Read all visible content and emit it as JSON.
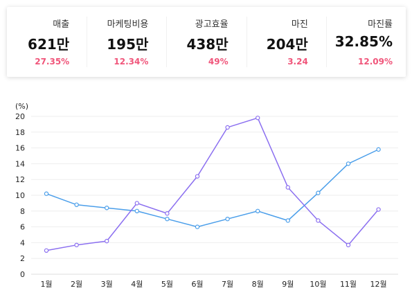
{
  "kpis": [
    {
      "label": "매출",
      "value": "621만",
      "change": "27.35%"
    },
    {
      "label": "마케팅비용",
      "value": "195만",
      "change": "12.34%"
    },
    {
      "label": "광고효율",
      "value": "438만",
      "change": "49%"
    },
    {
      "label": "마진",
      "value": "204만",
      "change": "3.24"
    },
    {
      "label": "마진률",
      "value": "32.85%",
      "change": "12.09%"
    }
  ],
  "colors": {
    "accent_change": "#f0557a",
    "series_blue": "#4a9eea",
    "series_purple": "#8b6ff0"
  },
  "chart_data": {
    "type": "line",
    "ylabel": "(%)",
    "ylim": [
      0,
      20
    ],
    "yticks": [
      0,
      2,
      4,
      6,
      8,
      10,
      12,
      14,
      16,
      18,
      20
    ],
    "categories": [
      "1월",
      "2월",
      "3월",
      "4월",
      "5월",
      "6월",
      "7월",
      "8월",
      "9월",
      "10월",
      "11월",
      "12월"
    ],
    "grid": true,
    "series": [
      {
        "color": "#4a9eea",
        "values": [
          10.2,
          8.8,
          8.4,
          8.0,
          7.0,
          6.0,
          7.0,
          8.0,
          6.8,
          10.3,
          14.0,
          15.8
        ]
      },
      {
        "color": "#8b6ff0",
        "values": [
          3.0,
          3.7,
          4.2,
          9.0,
          7.7,
          12.4,
          18.6,
          19.8,
          11.0,
          6.8,
          3.7,
          8.2
        ]
      }
    ]
  }
}
